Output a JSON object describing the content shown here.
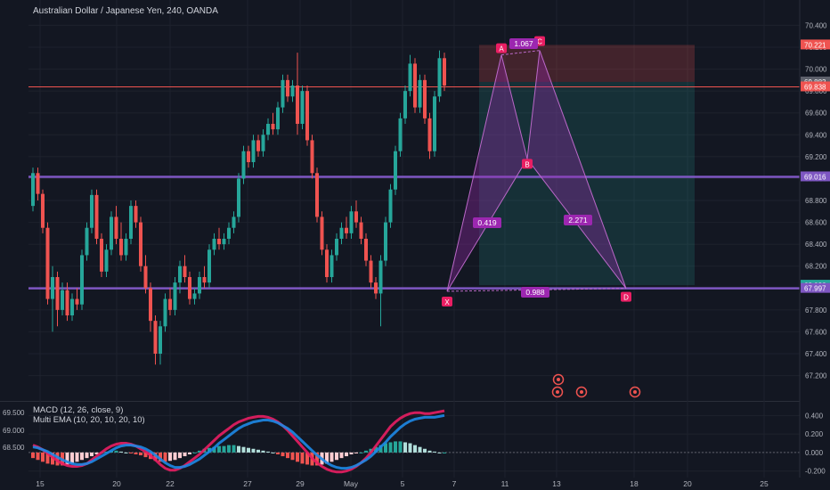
{
  "header": {
    "title": "Australian Dollar / Japanese Yen, 240, OANDA"
  },
  "colors": {
    "background": "#131722",
    "grid": "#1e222d",
    "up": "#26a69a",
    "down": "#ef5350",
    "purple_line": "#7e57c2",
    "pattern_fill": "#9c27b0",
    "pattern_label": "#e91e63",
    "ratio_label": "#9c27b0",
    "stop_zone": "#4a2630",
    "target_zone": "#183a3a",
    "macd_fast": "#e91e63",
    "macd_slow": "#1e88e5"
  },
  "chart_data": [
    {
      "type": "candlestick",
      "title": "Australian Dollar / Japanese Yen, 240, OANDA",
      "x_ticks": [
        "15",
        "20",
        "22",
        "27",
        "29",
        "May",
        "5",
        "7",
        "11",
        "13",
        "18",
        "20",
        "25"
      ],
      "y_ticks": [
        67.2,
        67.4,
        67.6,
        67.8,
        68.0,
        68.2,
        68.4,
        68.6,
        68.8,
        69.0,
        69.2,
        69.4,
        69.6,
        69.8,
        70.0,
        70.2,
        70.4
      ],
      "ylim": [
        67.05,
        70.55
      ],
      "grid": true,
      "price_badges": [
        {
          "label": "70.221",
          "value": 70.221,
          "color": "#ef5350"
        },
        {
          "label": "69.883",
          "value": 69.883,
          "color": "#5d606b"
        },
        {
          "label": "69.838",
          "value": 69.838,
          "color": "#ef5350"
        },
        {
          "label": "69.016",
          "value": 69.016,
          "color": "#7e57c2"
        },
        {
          "label": "68.026",
          "value": 68.026,
          "color": "#26a69a"
        },
        {
          "label": "67.997",
          "value": 67.997,
          "color": "#7e57c2"
        }
      ],
      "horizontal_lines": [
        {
          "value": 69.016,
          "color": "#7e57c2"
        },
        {
          "value": 67.997,
          "color": "#7e57c2"
        },
        {
          "value": 69.838,
          "color": "#ef5350"
        }
      ],
      "pattern_points": [
        {
          "label": "X",
          "value": 67.97
        },
        {
          "label": "A",
          "value": 70.13
        },
        {
          "label": "B",
          "value": 69.18
        },
        {
          "label": "C",
          "value": 70.17
        },
        {
          "label": "D",
          "value": 67.997
        }
      ],
      "ratios": [
        "1.067",
        "0.419",
        "2.271",
        "0.988"
      ],
      "position": {
        "stop": 70.221,
        "entry": 69.883,
        "target": 68.026
      },
      "candles": [
        {
          "o": 68.75,
          "h": 69.1,
          "l": 68.7,
          "c": 69.05
        },
        {
          "o": 69.05,
          "h": 69.1,
          "l": 68.8,
          "c": 68.86
        },
        {
          "o": 68.86,
          "h": 68.9,
          "l": 68.5,
          "c": 68.55
        },
        {
          "o": 68.55,
          "h": 68.6,
          "l": 67.85,
          "c": 67.9
        },
        {
          "o": 67.9,
          "h": 68.2,
          "l": 67.6,
          "c": 68.1
        },
        {
          "o": 68.1,
          "h": 68.15,
          "l": 67.65,
          "c": 67.8
        },
        {
          "o": 67.8,
          "h": 68.05,
          "l": 67.75,
          "c": 67.98
        },
        {
          "o": 67.98,
          "h": 68.05,
          "l": 67.7,
          "c": 67.75
        },
        {
          "o": 67.75,
          "h": 67.95,
          "l": 67.7,
          "c": 67.9
        },
        {
          "o": 67.9,
          "h": 68.0,
          "l": 67.8,
          "c": 67.85
        },
        {
          "o": 67.85,
          "h": 68.35,
          "l": 67.8,
          "c": 68.3
        },
        {
          "o": 68.3,
          "h": 68.6,
          "l": 68.25,
          "c": 68.55
        },
        {
          "o": 68.55,
          "h": 68.9,
          "l": 68.5,
          "c": 68.85
        },
        {
          "o": 68.85,
          "h": 68.9,
          "l": 68.4,
          "c": 68.45
        },
        {
          "o": 68.45,
          "h": 68.5,
          "l": 68.1,
          "c": 68.15
        },
        {
          "o": 68.15,
          "h": 68.4,
          "l": 68.1,
          "c": 68.35
        },
        {
          "o": 68.35,
          "h": 68.7,
          "l": 68.3,
          "c": 68.65
        },
        {
          "o": 68.65,
          "h": 68.75,
          "l": 68.4,
          "c": 68.45
        },
        {
          "o": 68.45,
          "h": 68.6,
          "l": 68.25,
          "c": 68.3
        },
        {
          "o": 68.3,
          "h": 68.5,
          "l": 68.25,
          "c": 68.45
        },
        {
          "o": 68.45,
          "h": 68.8,
          "l": 68.4,
          "c": 68.75
        },
        {
          "o": 68.75,
          "h": 68.8,
          "l": 68.55,
          "c": 68.6
        },
        {
          "o": 68.6,
          "h": 68.65,
          "l": 68.15,
          "c": 68.2
        },
        {
          "o": 68.2,
          "h": 68.3,
          "l": 67.95,
          "c": 68.0
        },
        {
          "o": 68.0,
          "h": 68.05,
          "l": 67.6,
          "c": 67.7
        },
        {
          "o": 67.7,
          "h": 67.75,
          "l": 67.3,
          "c": 67.4
        },
        {
          "o": 67.4,
          "h": 67.7,
          "l": 67.3,
          "c": 67.65
        },
        {
          "o": 67.65,
          "h": 67.95,
          "l": 67.6,
          "c": 67.9
        },
        {
          "o": 67.9,
          "h": 68.0,
          "l": 67.75,
          "c": 67.8
        },
        {
          "o": 67.8,
          "h": 68.1,
          "l": 67.75,
          "c": 68.05
        },
        {
          "o": 68.05,
          "h": 68.25,
          "l": 67.95,
          "c": 68.2
        },
        {
          "o": 68.2,
          "h": 68.3,
          "l": 68.05,
          "c": 68.1
        },
        {
          "o": 68.1,
          "h": 68.15,
          "l": 67.85,
          "c": 67.9
        },
        {
          "o": 67.9,
          "h": 68.0,
          "l": 67.85,
          "c": 67.95
        },
        {
          "o": 67.95,
          "h": 68.15,
          "l": 67.9,
          "c": 68.1
        },
        {
          "o": 68.1,
          "h": 68.2,
          "l": 68.0,
          "c": 68.05
        },
        {
          "o": 68.05,
          "h": 68.4,
          "l": 68.0,
          "c": 68.35
        },
        {
          "o": 68.35,
          "h": 68.5,
          "l": 68.3,
          "c": 68.45
        },
        {
          "o": 68.45,
          "h": 68.55,
          "l": 68.35,
          "c": 68.4
        },
        {
          "o": 68.4,
          "h": 68.5,
          "l": 68.35,
          "c": 68.45
        },
        {
          "o": 68.45,
          "h": 68.6,
          "l": 68.4,
          "c": 68.55
        },
        {
          "o": 68.55,
          "h": 68.7,
          "l": 68.5,
          "c": 68.65
        },
        {
          "o": 68.65,
          "h": 69.05,
          "l": 68.6,
          "c": 69.0
        },
        {
          "o": 69.0,
          "h": 69.3,
          "l": 68.95,
          "c": 69.25
        },
        {
          "o": 69.25,
          "h": 69.3,
          "l": 69.1,
          "c": 69.15
        },
        {
          "o": 69.15,
          "h": 69.4,
          "l": 69.1,
          "c": 69.35
        },
        {
          "o": 69.35,
          "h": 69.4,
          "l": 69.2,
          "c": 69.25
        },
        {
          "o": 69.25,
          "h": 69.45,
          "l": 69.2,
          "c": 69.4
        },
        {
          "o": 69.4,
          "h": 69.55,
          "l": 69.35,
          "c": 69.5
        },
        {
          "o": 69.5,
          "h": 69.6,
          "l": 69.4,
          "c": 69.45
        },
        {
          "o": 69.45,
          "h": 69.7,
          "l": 69.4,
          "c": 69.65
        },
        {
          "o": 69.65,
          "h": 69.95,
          "l": 69.6,
          "c": 69.9
        },
        {
          "o": 69.9,
          "h": 69.95,
          "l": 69.7,
          "c": 69.75
        },
        {
          "o": 69.75,
          "h": 69.9,
          "l": 69.7,
          "c": 69.85
        },
        {
          "o": 69.85,
          "h": 70.15,
          "l": 69.4,
          "c": 69.5
        },
        {
          "o": 69.5,
          "h": 69.85,
          "l": 69.45,
          "c": 69.8
        },
        {
          "o": 69.8,
          "h": 69.85,
          "l": 69.3,
          "c": 69.35
        },
        {
          "o": 69.35,
          "h": 69.4,
          "l": 69.0,
          "c": 69.05
        },
        {
          "o": 69.05,
          "h": 69.1,
          "l": 68.6,
          "c": 68.65
        },
        {
          "o": 68.65,
          "h": 68.7,
          "l": 68.3,
          "c": 68.35
        },
        {
          "o": 68.35,
          "h": 68.4,
          "l": 68.05,
          "c": 68.1
        },
        {
          "o": 68.1,
          "h": 68.35,
          "l": 68.05,
          "c": 68.3
        },
        {
          "o": 68.3,
          "h": 68.5,
          "l": 68.25,
          "c": 68.45
        },
        {
          "o": 68.45,
          "h": 68.6,
          "l": 68.4,
          "c": 68.55
        },
        {
          "o": 68.55,
          "h": 68.65,
          "l": 68.45,
          "c": 68.5
        },
        {
          "o": 68.5,
          "h": 68.75,
          "l": 68.45,
          "c": 68.7
        },
        {
          "o": 68.7,
          "h": 68.8,
          "l": 68.55,
          "c": 68.6
        },
        {
          "o": 68.6,
          "h": 68.65,
          "l": 68.4,
          "c": 68.45
        },
        {
          "o": 68.45,
          "h": 68.5,
          "l": 68.2,
          "c": 68.25
        },
        {
          "o": 68.25,
          "h": 68.3,
          "l": 68.0,
          "c": 68.05
        },
        {
          "o": 68.05,
          "h": 68.1,
          "l": 67.9,
          "c": 67.95
        },
        {
          "o": 67.95,
          "h": 68.3,
          "l": 67.65,
          "c": 68.25
        },
        {
          "o": 68.25,
          "h": 68.65,
          "l": 68.2,
          "c": 68.6
        },
        {
          "o": 68.6,
          "h": 68.95,
          "l": 68.55,
          "c": 68.9
        },
        {
          "o": 68.9,
          "h": 69.3,
          "l": 68.85,
          "c": 69.25
        },
        {
          "o": 69.25,
          "h": 69.6,
          "l": 69.2,
          "c": 69.55
        },
        {
          "o": 69.55,
          "h": 69.85,
          "l": 69.5,
          "c": 69.8
        },
        {
          "o": 69.8,
          "h": 70.13,
          "l": 69.75,
          "c": 70.05
        },
        {
          "o": 70.05,
          "h": 70.1,
          "l": 69.6,
          "c": 69.65
        },
        {
          "o": 69.65,
          "h": 69.95,
          "l": 69.6,
          "c": 69.9
        },
        {
          "o": 69.9,
          "h": 69.95,
          "l": 69.5,
          "c": 69.55
        },
        {
          "o": 69.55,
          "h": 69.6,
          "l": 69.18,
          "c": 69.25
        },
        {
          "o": 69.25,
          "h": 69.8,
          "l": 69.2,
          "c": 69.75
        },
        {
          "o": 69.75,
          "h": 70.17,
          "l": 69.7,
          "c": 70.1
        },
        {
          "o": 70.1,
          "h": 70.15,
          "l": 69.8,
          "c": 69.85
        }
      ]
    },
    {
      "type": "line",
      "title": "MACD (12, 26, close, 9)",
      "subtitle": "Multi EMA (10, 20, 10, 20, 10)",
      "left_ticks": [
        "69.500",
        "69.000",
        "68.500"
      ],
      "y_ticks": [
        "0.400",
        "0.200",
        "0.000",
        "-0.200"
      ],
      "ylim": [
        -0.27,
        0.48
      ],
      "histogram": [
        -0.06,
        -0.08,
        -0.1,
        -0.12,
        -0.13,
        -0.14,
        -0.14,
        -0.13,
        -0.12,
        -0.1,
        -0.08,
        -0.06,
        -0.04,
        -0.02,
        0.0,
        0.01,
        0.02,
        0.02,
        0.01,
        0.0,
        -0.01,
        -0.02,
        -0.03,
        -0.05,
        -0.07,
        -0.09,
        -0.1,
        -0.1,
        -0.09,
        -0.08,
        -0.06,
        -0.04,
        -0.02,
        0.0,
        0.02,
        0.04,
        0.05,
        0.06,
        0.07,
        0.07,
        0.08,
        0.08,
        0.07,
        0.06,
        0.05,
        0.04,
        0.03,
        0.02,
        0.01,
        0.0,
        -0.02,
        -0.04,
        -0.06,
        -0.08,
        -0.1,
        -0.12,
        -0.13,
        -0.14,
        -0.14,
        -0.13,
        -0.12,
        -0.1,
        -0.08,
        -0.06,
        -0.04,
        -0.02,
        -0.01,
        0.0,
        0.02,
        0.04,
        0.06,
        0.08,
        0.1,
        0.11,
        0.12,
        0.12,
        0.11,
        0.1,
        0.08,
        0.06,
        0.04,
        0.02,
        0.01,
        0.0,
        0.0
      ],
      "series": [
        {
          "values": [
            0.08,
            0.06,
            0.03,
            -0.01,
            -0.05,
            -0.09,
            -0.12,
            -0.14,
            -0.15,
            -0.15,
            -0.14,
            -0.12,
            -0.08,
            -0.04,
            0.0,
            0.04,
            0.07,
            0.09,
            0.1,
            0.1,
            0.09,
            0.07,
            0.04,
            0.01,
            -0.03,
            -0.08,
            -0.13,
            -0.17,
            -0.19,
            -0.19,
            -0.17,
            -0.14,
            -0.1,
            -0.06,
            -0.02,
            0.03,
            0.08,
            0.13,
            0.18,
            0.22,
            0.26,
            0.3,
            0.33,
            0.35,
            0.37,
            0.38,
            0.39,
            0.39,
            0.38,
            0.36,
            0.33,
            0.29,
            0.24,
            0.18,
            0.12,
            0.06,
            0.0,
            -0.06,
            -0.11,
            -0.15,
            -0.18,
            -0.2,
            -0.21,
            -0.21,
            -0.2,
            -0.18,
            -0.15,
            -0.11,
            -0.06,
            0.0,
            0.07,
            0.14,
            0.21,
            0.28,
            0.33,
            0.37,
            0.4,
            0.42,
            0.43,
            0.43,
            0.42,
            0.42,
            0.43,
            0.44,
            0.45
          ]
        },
        {
          "values": [
            0.06,
            0.05,
            0.03,
            0.01,
            -0.02,
            -0.05,
            -0.08,
            -0.1,
            -0.12,
            -0.13,
            -0.13,
            -0.12,
            -0.1,
            -0.07,
            -0.04,
            -0.01,
            0.02,
            0.05,
            0.07,
            0.08,
            0.08,
            0.07,
            0.06,
            0.04,
            0.01,
            -0.03,
            -0.07,
            -0.11,
            -0.14,
            -0.16,
            -0.16,
            -0.15,
            -0.13,
            -0.1,
            -0.07,
            -0.03,
            0.01,
            0.05,
            0.1,
            0.14,
            0.18,
            0.22,
            0.26,
            0.29,
            0.31,
            0.33,
            0.34,
            0.35,
            0.35,
            0.34,
            0.32,
            0.29,
            0.26,
            0.22,
            0.17,
            0.12,
            0.07,
            0.02,
            -0.03,
            -0.07,
            -0.11,
            -0.14,
            -0.16,
            -0.17,
            -0.17,
            -0.16,
            -0.14,
            -0.11,
            -0.08,
            -0.04,
            0.01,
            0.06,
            0.11,
            0.17,
            0.22,
            0.27,
            0.31,
            0.34,
            0.36,
            0.37,
            0.38,
            0.38,
            0.38,
            0.39,
            0.4
          ]
        }
      ]
    }
  ],
  "events": [
    {
      "icon": "earnings-icon"
    },
    {
      "icon": "dividends-icon"
    },
    {
      "icon": "dividends-icon"
    },
    {
      "icon": "split-icon"
    }
  ]
}
